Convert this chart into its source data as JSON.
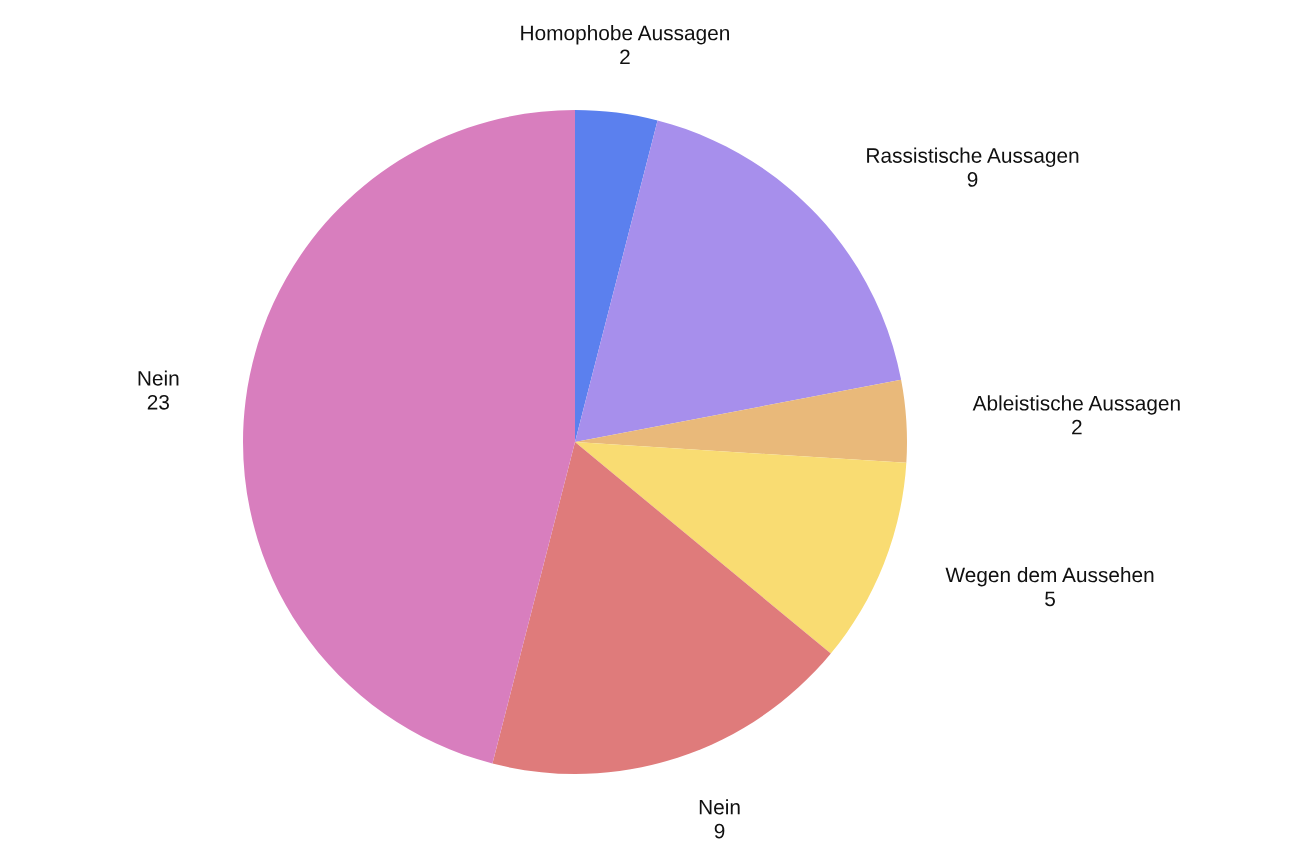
{
  "chart_data": {
    "type": "pie",
    "categories": [
      "Homophobe Aussagen",
      "Rassistische Aussagen",
      "Ableistische Aussagen",
      "Wegen dem Aussehen",
      "Nein",
      "Nein"
    ],
    "values": [
      2,
      9,
      2,
      5,
      9,
      23
    ],
    "colors": [
      "#5b80ee",
      "#a78fec",
      "#e9b97a",
      "#f9dc72",
      "#df7b7b",
      "#d87ebe"
    ],
    "data_labels": true,
    "legend": false
  }
}
